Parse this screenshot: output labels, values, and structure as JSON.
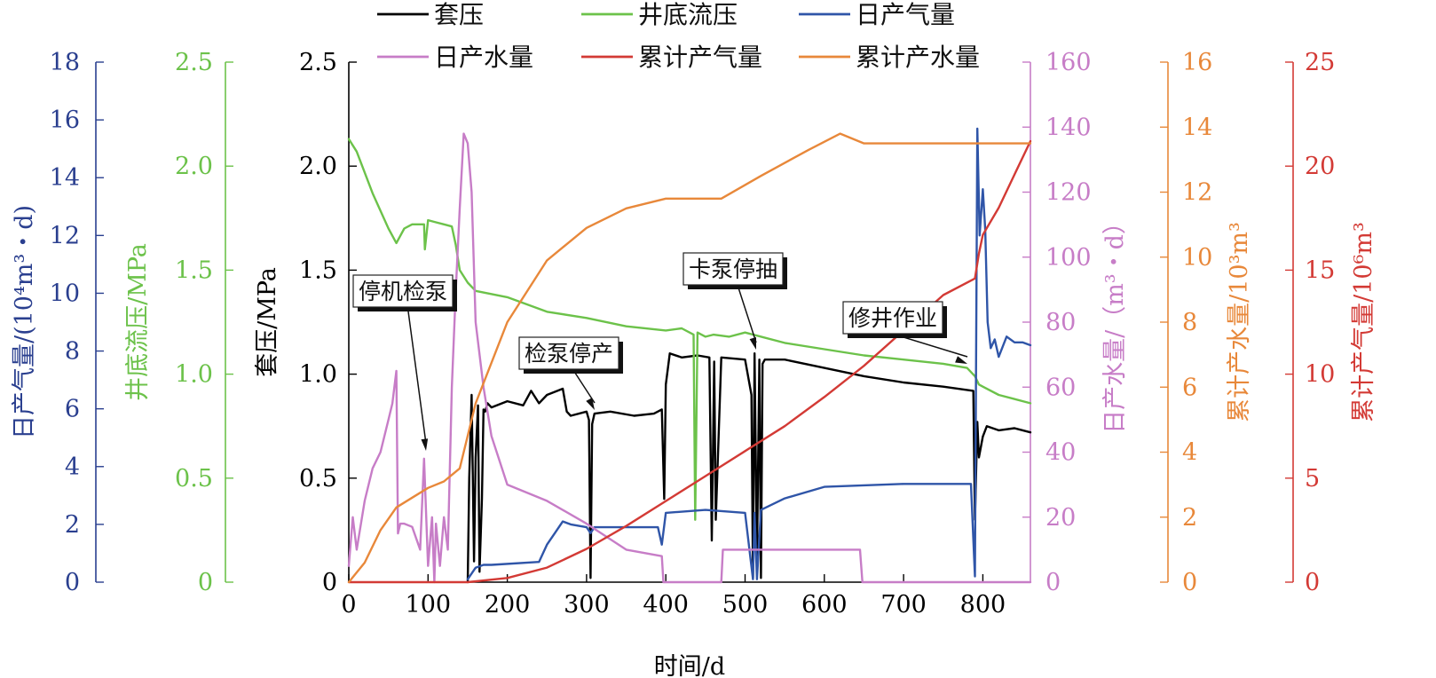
{
  "chart_data": {
    "type": "line",
    "xlabel": "时间/d",
    "xlim": [
      0,
      860
    ],
    "xticks": [
      0,
      100,
      200,
      300,
      400,
      500,
      600,
      700,
      800
    ],
    "axes": {
      "daily_gas": {
        "label": "日产气量/(10⁴m³・d)",
        "lim": [
          0,
          18
        ],
        "ticks": [
          0,
          2,
          4,
          6,
          8,
          10,
          12,
          14,
          16,
          18
        ],
        "color": "#2a3f8f"
      },
      "bhp": {
        "label": "井底流压/MPa",
        "lim": [
          0,
          2.5
        ],
        "ticks": [
          "0",
          "0.5",
          "1.0",
          "1.5",
          "2.0",
          "2.5"
        ],
        "color": "#6cc24a"
      },
      "casing": {
        "label": "套压/MPa",
        "lim": [
          0,
          2.5
        ],
        "ticks": [
          "0",
          "0.5",
          "1.0",
          "1.5",
          "2.0",
          "2.5"
        ],
        "color": "#000000"
      },
      "daily_water": {
        "label": "日产水量/（m³・d）",
        "lim": [
          0,
          160
        ],
        "ticks": [
          0,
          20,
          40,
          60,
          80,
          100,
          120,
          140,
          160
        ],
        "color": "#c77dc7"
      },
      "cum_water": {
        "label": "累计产水量/10³m³",
        "lim": [
          0,
          16
        ],
        "ticks": [
          0,
          2,
          4,
          6,
          8,
          10,
          12,
          14,
          16
        ],
        "color": "#e8883a"
      },
      "cum_gas": {
        "label": "累计产气量/10⁶m³",
        "lim": [
          0,
          25
        ],
        "ticks": [
          0,
          5,
          10,
          15,
          20,
          25
        ],
        "color": "#d33a35"
      }
    },
    "legend": [
      {
        "name": "套压",
        "color": "#000000"
      },
      {
        "name": "井底流压",
        "color": "#6cc24a"
      },
      {
        "name": "日产气量",
        "color": "#2f55a8"
      },
      {
        "name": "日产水量",
        "color": "#c77dc7"
      },
      {
        "name": "累计产气量",
        "color": "#d33a35"
      },
      {
        "name": "累计产水量",
        "color": "#e8883a"
      }
    ],
    "series": [
      {
        "name": "套压",
        "axis": "casing",
        "color": "#000000",
        "x": [
          150,
          152,
          155,
          158,
          160,
          163,
          165,
          168,
          170,
          172,
          175,
          180,
          200,
          220,
          230,
          240,
          250,
          270,
          275,
          280,
          300,
          303,
          305,
          307,
          310,
          330,
          360,
          385,
          395,
          398,
          400,
          405,
          420,
          440,
          455,
          458,
          461,
          463,
          470,
          500,
          508,
          510,
          512,
          515,
          518,
          520,
          522,
          525,
          550,
          600,
          650,
          700,
          750,
          788,
          790,
          793,
          795,
          800,
          805,
          820,
          840,
          860
        ],
        "y": [
          0,
          0.5,
          0.9,
          0.1,
          0.6,
          0.85,
          0.05,
          0.4,
          0.83,
          0.82,
          0.86,
          0.84,
          0.87,
          0.85,
          0.92,
          0.86,
          0.9,
          0.93,
          0.82,
          0.8,
          0.82,
          0.78,
          0.02,
          0.76,
          0.81,
          0.82,
          0.8,
          0.81,
          0.83,
          0.4,
          0.95,
          1.1,
          1.08,
          1.09,
          1.08,
          0.2,
          1.06,
          0.3,
          1.08,
          1.07,
          0.9,
          0.02,
          1.1,
          0.1,
          1.07,
          0.02,
          1.05,
          1.07,
          1.07,
          1.03,
          0.99,
          0.96,
          0.94,
          0.92,
          0.3,
          0.77,
          0.6,
          0.7,
          0.75,
          0.73,
          0.74,
          0.72
        ]
      },
      {
        "name": "井底流压",
        "axis": "bhp",
        "color": "#6cc24a",
        "x": [
          0,
          10,
          30,
          50,
          60,
          70,
          80,
          90,
          95,
          96,
          100,
          110,
          120,
          130,
          135,
          140,
          150,
          160,
          200,
          250,
          300,
          350,
          400,
          420,
          435,
          437,
          440,
          450,
          460,
          480,
          500,
          550,
          600,
          650,
          700,
          750,
          780,
          790,
          795,
          800,
          820,
          860
        ],
        "y": [
          2.13,
          2.07,
          1.87,
          1.7,
          1.63,
          1.7,
          1.72,
          1.72,
          1.72,
          1.6,
          1.74,
          1.73,
          1.72,
          1.71,
          1.62,
          1.5,
          1.44,
          1.4,
          1.37,
          1.3,
          1.27,
          1.23,
          1.21,
          1.22,
          1.19,
          0.3,
          1.2,
          1.18,
          1.19,
          1.18,
          1.2,
          1.15,
          1.12,
          1.09,
          1.07,
          1.05,
          1.03,
          0.99,
          0.95,
          0.94,
          0.9,
          0.86
        ]
      },
      {
        "name": "日产气量",
        "axis": "daily_gas",
        "color": "#2f55a8",
        "x": [
          150,
          160,
          170,
          180,
          240,
          250,
          260,
          270,
          280,
          300,
          305,
          310,
          390,
          395,
          400,
          450,
          500,
          510,
          512,
          515,
          520,
          550,
          600,
          700,
          785,
          790,
          793,
          796,
          800,
          803,
          806,
          810,
          815,
          820,
          830,
          840,
          850,
          860
        ],
        "y": [
          0.1,
          0.5,
          0.6,
          0.6,
          0.7,
          1.3,
          1.7,
          2.1,
          2.0,
          1.9,
          1.7,
          1.9,
          1.9,
          1.3,
          2.4,
          2.5,
          2.4,
          0.1,
          2.4,
          0.1,
          2.5,
          2.9,
          3.3,
          3.4,
          3.4,
          0.2,
          15.7,
          12.0,
          13.6,
          12.2,
          9.0,
          8.1,
          8.4,
          7.8,
          8.5,
          8.3,
          8.3,
          8.2
        ]
      },
      {
        "name": "日产水量",
        "axis": "daily_water",
        "color": "#c77dc7",
        "x": [
          0,
          5,
          10,
          20,
          30,
          40,
          50,
          55,
          60,
          62,
          65,
          70,
          80,
          90,
          95,
          100,
          105,
          108,
          110,
          115,
          120,
          125,
          130,
          135,
          140,
          145,
          150,
          155,
          160,
          170,
          180,
          200,
          250,
          300,
          350,
          395,
          397,
          470,
          472,
          645,
          648,
          860
        ],
        "y": [
          5,
          20,
          10,
          25,
          35,
          40,
          50,
          55,
          65,
          15,
          18,
          18,
          17,
          10,
          38,
          5,
          20,
          0,
          18,
          5,
          20,
          10,
          60,
          90,
          115,
          138,
          135,
          120,
          80,
          60,
          45,
          30,
          25,
          18,
          10,
          8,
          0,
          0,
          10,
          10,
          0,
          0
        ]
      },
      {
        "name": "累计产气量",
        "axis": "cum_gas",
        "color": "#d33a35",
        "x": [
          0,
          150,
          200,
          250,
          300,
          350,
          400,
          450,
          500,
          550,
          600,
          650,
          700,
          750,
          790,
          795,
          800,
          820,
          840,
          860
        ],
        "y": [
          0,
          0,
          0.2,
          0.7,
          1.6,
          2.7,
          3.9,
          5.1,
          6.3,
          7.5,
          8.9,
          10.4,
          12.1,
          13.8,
          14.6,
          15.8,
          16.7,
          18.0,
          19.6,
          21.2
        ]
      },
      {
        "name": "累计产水量",
        "axis": "cum_water",
        "color": "#e8883a",
        "x": [
          0,
          20,
          40,
          60,
          80,
          100,
          120,
          140,
          160,
          200,
          250,
          300,
          350,
          400,
          470,
          520,
          580,
          620,
          650,
          700,
          800,
          860
        ],
        "y": [
          0,
          0.6,
          1.6,
          2.3,
          2.6,
          2.9,
          3.1,
          3.5,
          5.5,
          8.0,
          9.9,
          10.9,
          11.5,
          11.8,
          11.8,
          12.5,
          13.3,
          13.8,
          13.5,
          13.5,
          13.5,
          13.5
        ]
      }
    ],
    "annotations": [
      {
        "text": "停机检泵",
        "x": 100,
        "y": 0.6
      },
      {
        "text": "检泵停产",
        "x": 305,
        "y": 0.8
      },
      {
        "text": "卡泵停抽",
        "x": 510,
        "y": 1.1
      },
      {
        "text": "修井作业",
        "x": 785,
        "y": 0.95
      }
    ]
  }
}
